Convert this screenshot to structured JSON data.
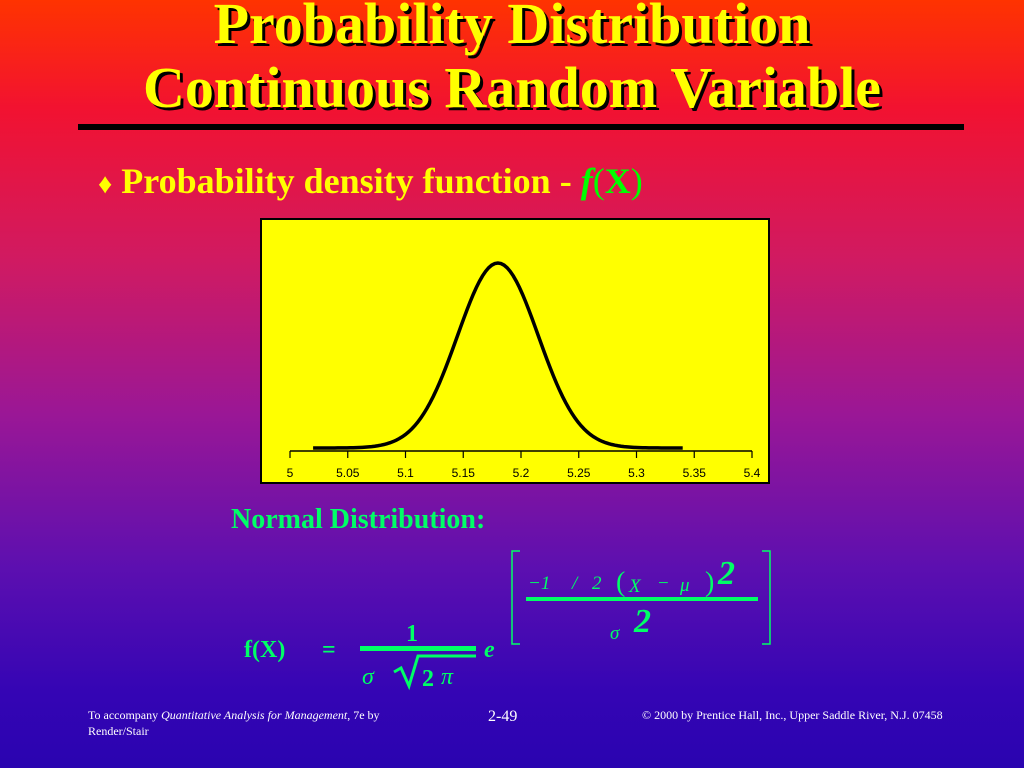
{
  "slide": {
    "title_line1": "Probability Distribution",
    "title_line2": "Continuous Random Variable",
    "bullet_symbol": "♦",
    "bullet_text": "Probability density function - ",
    "bullet_f": "f",
    "bullet_paren_open": "(",
    "bullet_X": "X",
    "bullet_paren_close": ")",
    "formula_label": "Normal Distribution:",
    "formula": {
      "lhs": "f(X)",
      "eq": "=",
      "numerator": "1",
      "sigma": "σ",
      "two": "2",
      "pi": "π",
      "e": "e",
      "exp_minus1": "−1",
      "exp_slash": "/",
      "exp_2": "2",
      "exp_paren_open": "(",
      "exp_X": "X",
      "exp_minus": "−",
      "exp_mu": "μ",
      "exp_paren_close": ")",
      "exp_power": "2",
      "exp_den_sigma": "σ",
      "exp_den_2": "2"
    },
    "footer": {
      "left_prefix": "To accompany ",
      "left_italic": "Quantitative Analysis for Management",
      "left_suffix": ", 7e by Render/Stair",
      "page": "2-49",
      "right": "© 2000 by Prentice Hall, Inc., Upper Saddle River, N.J. 07458"
    },
    "colors": {
      "title": "#ffff00",
      "formula": "#00ff66",
      "chart_bg": "#ffff00",
      "curve": "#000000"
    }
  },
  "chart_data": {
    "type": "line",
    "title": "",
    "xlabel": "",
    "ylabel": "",
    "xlim": [
      5,
      5.4
    ],
    "x_ticks": [
      "5",
      "5.05",
      "5.1",
      "5.15",
      "5.2",
      "5.25",
      "5.3",
      "5.35",
      "5.4"
    ],
    "distribution": "normal",
    "mean": 5.18,
    "sd": 0.035,
    "x_range": [
      5.02,
      5.34
    ],
    "grid": false,
    "legend": "none"
  }
}
